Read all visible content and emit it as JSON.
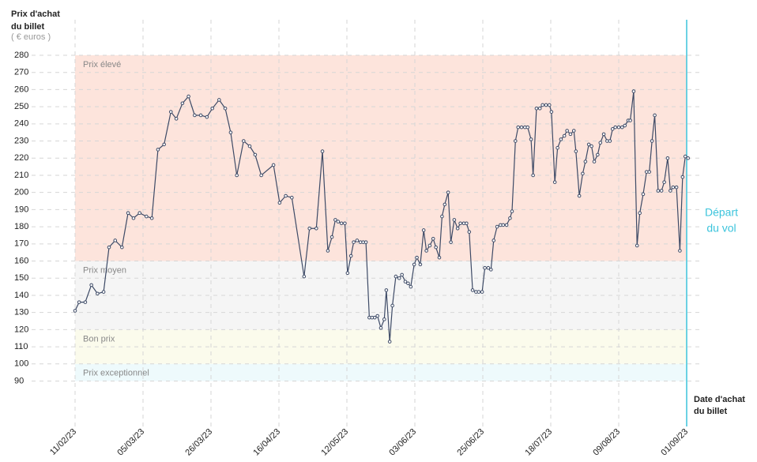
{
  "chart_data": {
    "type": "line",
    "y_label": [
      "Prix d'achat",
      "du billet"
    ],
    "y_unit": "( € euros )",
    "x_label": [
      "Date d'achat",
      "du billet"
    ],
    "annotation": [
      "Départ",
      "du vol"
    ],
    "annotation_color": "#3cc4dc",
    "ylim": [
      90,
      280
    ],
    "yticks": [
      90,
      100,
      110,
      120,
      130,
      140,
      150,
      160,
      170,
      180,
      190,
      200,
      210,
      220,
      230,
      240,
      250,
      260,
      270,
      280
    ],
    "xlim": [
      0,
      9
    ],
    "xticks": [
      {
        "value": 0,
        "label": "11/02/23"
      },
      {
        "value": 1,
        "label": "05/03/23"
      },
      {
        "value": 2,
        "label": "26/03/23"
      },
      {
        "value": 3,
        "label": "16/04/23"
      },
      {
        "value": 4,
        "label": "12/05/23"
      },
      {
        "value": 5,
        "label": "03/06/23"
      },
      {
        "value": 6,
        "label": "25/06/23"
      },
      {
        "value": 7,
        "label": "18/07/23"
      },
      {
        "value": 8,
        "label": "09/08/23"
      },
      {
        "value": 9,
        "label": "01/09/23"
      }
    ],
    "grid": true,
    "bands": [
      {
        "label": "Prix élevé",
        "from": 160,
        "to": 280,
        "color": "#fde4dc"
      },
      {
        "label": "Prix moyen",
        "from": 120,
        "to": 160,
        "color": "#f5f5f5"
      },
      {
        "label": "Bon prix",
        "from": 100,
        "to": 120,
        "color": "#fbfbec"
      },
      {
        "label": "Prix exceptionnel",
        "from": 90,
        "to": 100,
        "color": "#eefafc"
      }
    ],
    "series": [
      {
        "color": "#3d4a66",
        "x": [
          0,
          0.06,
          0.15,
          0.24,
          0.33,
          0.42,
          0.5,
          0.59,
          0.69,
          0.78,
          0.86,
          0.95,
          1.05,
          1.13,
          1.22,
          1.31,
          1.41,
          1.49,
          1.58,
          1.67,
          1.76,
          1.85,
          1.94,
          2.02,
          2.12,
          2.21,
          2.29,
          2.38,
          2.48,
          2.57,
          2.65,
          2.74,
          2.92,
          3.01,
          3.1,
          3.19,
          3.37,
          3.45,
          3.55,
          3.64,
          3.72,
          3.78,
          3.83,
          3.87,
          3.92,
          3.97,
          4.01,
          4.06,
          4.1,
          4.15,
          4.2,
          4.24,
          4.28,
          4.33,
          4.37,
          4.41,
          4.45,
          4.5,
          4.55,
          4.58,
          4.63,
          4.67,
          4.72,
          4.77,
          4.81,
          4.86,
          4.9,
          4.94,
          4.99,
          5.03,
          5.08,
          5.13,
          5.17,
          5.22,
          5.27,
          5.31,
          5.36,
          5.4,
          5.44,
          5.49,
          5.53,
          5.58,
          5.63,
          5.67,
          5.72,
          5.76,
          5.8,
          5.85,
          5.9,
          5.94,
          5.99,
          6.03,
          6.08,
          6.12,
          6.16,
          6.21,
          6.26,
          6.3,
          6.35,
          6.4,
          6.43,
          6.48,
          6.52,
          6.57,
          6.62,
          6.66,
          6.71,
          6.74,
          6.79,
          6.84,
          6.88,
          6.93,
          6.98,
          7.01,
          7.06,
          7.1,
          7.15,
          7.2,
          7.24,
          7.29,
          7.34,
          7.37,
          7.42,
          7.47,
          7.51,
          7.56,
          7.6,
          7.64,
          7.69,
          7.73,
          7.78,
          7.83,
          7.87,
          7.91,
          7.95,
          8.0,
          8.05,
          8.09,
          8.14,
          8.17,
          8.22,
          8.27,
          8.31,
          8.36,
          8.41,
          8.45,
          8.49,
          8.53,
          8.58,
          8.63,
          8.67,
          8.72,
          8.76,
          8.8,
          8.85,
          8.9,
          8.94,
          8.98,
          9.02
        ],
        "values": [
          131,
          136,
          136,
          146,
          141,
          142,
          168,
          172,
          168,
          188,
          185,
          188,
          186,
          185,
          225,
          228,
          247,
          243,
          252,
          256,
          245,
          245,
          244,
          249,
          254,
          249,
          235,
          210,
          230,
          227,
          222,
          210,
          216,
          194,
          198,
          197,
          151,
          179,
          179,
          224,
          166,
          174,
          184,
          183,
          182,
          182,
          153,
          163,
          171,
          172,
          171,
          171,
          171,
          127,
          127,
          127,
          128,
          121,
          126,
          143,
          113,
          134,
          151,
          150,
          152,
          148,
          147,
          145,
          158,
          162,
          158,
          178,
          166,
          169,
          173,
          168,
          162,
          186,
          193,
          200,
          171,
          184,
          179,
          182,
          182,
          182,
          177,
          143,
          142,
          142,
          142,
          156,
          156,
          155,
          172,
          180,
          181,
          181,
          181,
          185,
          189,
          230,
          238,
          238,
          238,
          238,
          231,
          210,
          249,
          249,
          251,
          251,
          251,
          247,
          206,
          226,
          231,
          233,
          236,
          234,
          236,
          224,
          198,
          211,
          218,
          228,
          227,
          218,
          222,
          229,
          234,
          230,
          230,
          237,
          238,
          238,
          238,
          239,
          242,
          242,
          259,
          169,
          188,
          199,
          212,
          212,
          230,
          245,
          201,
          201,
          206,
          220,
          201,
          203,
          203,
          166,
          209,
          221,
          220
        ]
      }
    ]
  }
}
